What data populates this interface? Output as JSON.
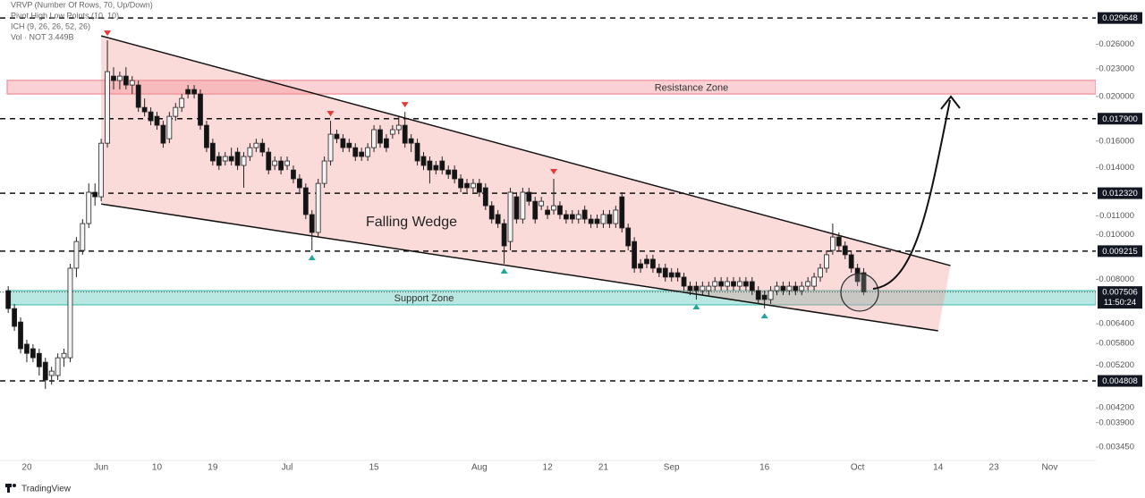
{
  "chart_data": {
    "type": "candlestick",
    "indicators": [
      "VRVP (Number Of Rows, 70, Up/Down)",
      "Pivot High Low Points (10, 10)",
      "ICH (9, 26, 26, 52, 26)",
      "Vol · NOT"
    ],
    "volume_label": "3.449B",
    "annotation": "Falling Wedge",
    "watermark": "TradingView",
    "log": true,
    "ylim": [
      0.003227,
      0.03245
    ],
    "yticks": [
      {
        "value": 0.026,
        "label": "0.026000"
      },
      {
        "value": 0.023,
        "label": "0.023000"
      },
      {
        "value": 0.02,
        "label": "0.020000"
      },
      {
        "value": 0.016,
        "label": "0.016000"
      },
      {
        "value": 0.014,
        "label": "0.014000"
      },
      {
        "value": 0.011,
        "label": "0.011000"
      },
      {
        "value": 0.01,
        "label": "0.010000"
      },
      {
        "value": 0.008,
        "label": "0.008000"
      },
      {
        "value": 0.0064,
        "label": "0.006400"
      },
      {
        "value": 0.0058,
        "label": "0.005800"
      },
      {
        "value": 0.0052,
        "label": "0.005200"
      },
      {
        "value": 0.0042,
        "label": "0.004200"
      },
      {
        "value": 0.0039,
        "label": "0.003900"
      },
      {
        "value": 0.00345,
        "label": "0.003450"
      }
    ],
    "levels": [
      0.029648,
      {
        "value": 0.0179,
        "label": "0.017900"
      },
      {
        "value": 0.01232,
        "label": "0.012320"
      },
      0.009215,
      0.004808
    ],
    "last_price": 0.007506,
    "countdown": "11:50:24",
    "up_color": "#f4f4f4",
    "down_color": "#131313",
    "zones": [
      {
        "label": "Resistance Zone",
        "range": [
          0.02026,
          0.02169
        ],
        "color": "#f28b96"
      },
      {
        "label": "Support Zone",
        "range": [
          0.00704,
          0.00756
        ],
        "color": "#4fc3b5"
      }
    ],
    "trendlines": [
      {
        "points": [
          [
            15,
            0.02711
          ],
          [
            152,
            0.00857
          ]
        ]
      },
      {
        "points": [
          [
            15,
            0.01167
          ],
          [
            150,
            0.00618
          ]
        ]
      }
    ],
    "pivot_highs": [
      16,
      52,
      64,
      88
    ],
    "pivot_lows": [
      49,
      80,
      111,
      122
    ],
    "pivot_high_color": "#e53935",
    "pivot_low_color": "#26a69a",
    "categories": [
      null,
      null,
      null,
      "20",
      null,
      null,
      null,
      null,
      null,
      null,
      null,
      null,
      null,
      null,
      null,
      "Jun",
      null,
      null,
      null,
      null,
      null,
      null,
      null,
      null,
      "10",
      null,
      null,
      null,
      null,
      null,
      null,
      null,
      null,
      "19",
      null,
      null,
      null,
      null,
      null,
      null,
      null,
      null,
      null,
      null,
      null,
      "Jul",
      null,
      null,
      null,
      null,
      null,
      null,
      null,
      null,
      null,
      null,
      null,
      null,
      null,
      "15",
      null,
      null,
      null,
      null,
      null,
      null,
      null,
      null,
      null,
      null,
      null,
      null,
      null,
      null,
      null,
      null,
      "Aug",
      null,
      null,
      null,
      null,
      null,
      null,
      null,
      null,
      null,
      null,
      "12",
      null,
      null,
      null,
      null,
      null,
      null,
      null,
      null,
      "21",
      null,
      null,
      null,
      null,
      null,
      null,
      null,
      null,
      null,
      null,
      "Sep",
      null,
      null,
      null,
      null,
      null,
      null,
      null,
      null,
      null,
      null,
      null,
      null,
      null,
      null,
      "16",
      null,
      null,
      null,
      null,
      null,
      null,
      null,
      null,
      null,
      null,
      null,
      null,
      null,
      null,
      "Oct",
      null,
      null,
      null,
      null,
      null,
      null,
      null,
      null,
      null,
      null,
      null,
      null,
      "14",
      null,
      null,
      null,
      null,
      null,
      null,
      null,
      null,
      "23",
      null,
      null,
      null,
      null,
      null,
      null,
      null,
      null,
      "Nov",
      null,
      null,
      null,
      null,
      null,
      null
    ],
    "open": [
      0.00756,
      0.00691,
      0.00646,
      0.00578,
      0.00565,
      0.00552,
      0.00528,
      0.00494,
      0.00494,
      0.0054,
      0.0054,
      0.00846,
      0.00925,
      0.01058,
      0.01238,
      0.0121,
      0.01583,
      0.02216,
      0.02167,
      0.02216,
      0.02119,
      0.02119,
      0.01894,
      0.01852,
      0.01811,
      0.01732,
      0.01619,
      0.01811,
      0.01894,
      0.02072,
      0.02072,
      0.02026,
      0.01732,
      0.01583,
      0.01481,
      0.01448,
      0.01481,
      0.01514,
      0.01416,
      0.01481,
      0.01548,
      0.01583,
      0.01514,
      0.01416,
      0.01448,
      0.01416,
      0.01384,
      0.01324,
      0.01266,
      0.01107,
      0.01012,
      0.01294,
      0.01448,
      0.01656,
      0.01619,
      0.01583,
      0.01548,
      0.01514,
      0.01481,
      0.01548,
      0.01694,
      0.01619,
      0.01656,
      0.01694,
      0.01732,
      0.01619,
      0.01583,
      0.01481,
      0.01448,
      0.01416,
      0.01448,
      0.01384,
      0.01384,
      0.01324,
      0.01294,
      0.01266,
      0.01294,
      0.01266,
      0.01157,
      0.01107,
      0.01058,
      0.00967,
      0.0121,
      0.01082,
      0.01238,
      0.01183,
      0.01157,
      0.01132,
      0.01132,
      0.01157,
      0.01107,
      0.01107,
      0.01082,
      0.01132,
      0.01082,
      0.01082,
      0.01058,
      0.01107,
      0.01058,
      0.0121,
      0.01035,
      0.00967,
      0.00865,
      0.00885,
      0.00885,
      0.00846,
      0.00846,
      0.00827,
      0.00827,
      0.00809,
      0.00773,
      0.00773,
      0.00756,
      0.00756,
      0.00773,
      0.00791,
      0.00773,
      0.00791,
      0.00773,
      0.00791,
      0.00791,
      0.00756,
      0.00739,
      0.00723,
      0.00756,
      0.00773,
      0.00756,
      0.00773,
      0.00756,
      0.00773,
      0.00773,
      0.00809,
      0.00846,
      0.00925,
      0.00989,
      0.00946,
      0.00905,
      0.00846,
      0.00827,
      null,
      null,
      null,
      null,
      null,
      null,
      null,
      null,
      null,
      null,
      null,
      null,
      null,
      null,
      null,
      null,
      null,
      null,
      null,
      null,
      null,
      null,
      null,
      null,
      null,
      null,
      null,
      null,
      null,
      null,
      null,
      null,
      null,
      null,
      null,
      null
    ],
    "high": [
      0.00773,
      0.00707,
      0.00661,
      0.00591,
      0.00578,
      0.00565,
      0.0054,
      0.00516,
      0.00552,
      0.00565,
      0.00865,
      0.00989,
      0.01082,
      0.01294,
      0.01294,
      0.01619,
      0.02651,
      0.02317,
      0.02266,
      0.02317,
      0.02216,
      0.02167,
      0.01981,
      0.01894,
      0.01852,
      0.01771,
      0.01852,
      0.01937,
      0.02026,
      0.02119,
      0.02119,
      0.02072,
      0.01771,
      0.01619,
      0.01514,
      0.01514,
      0.01548,
      0.01548,
      0.01514,
      0.01583,
      0.01619,
      0.01619,
      0.01548,
      0.01481,
      0.01481,
      0.01481,
      0.01416,
      0.01354,
      0.01294,
      0.01132,
      0.01324,
      0.01481,
      0.01771,
      0.01694,
      0.01656,
      0.01619,
      0.01583,
      0.01548,
      0.01583,
      0.01732,
      0.01732,
      0.01656,
      0.01732,
      0.01811,
      0.01852,
      0.01656,
      0.01619,
      0.01514,
      0.01481,
      0.01448,
      0.01481,
      0.01416,
      0.01416,
      0.01354,
      0.01324,
      0.01324,
      0.01324,
      0.01294,
      0.01183,
      0.01132,
      0.01082,
      0.01266,
      0.01238,
      0.01266,
      0.01266,
      0.0121,
      0.0121,
      0.01157,
      0.01324,
      0.01183,
      0.01132,
      0.01132,
      0.01132,
      0.01157,
      0.01107,
      0.01107,
      0.01132,
      0.01132,
      0.01157,
      0.01238,
      0.01058,
      0.00989,
      0.00885,
      0.00905,
      0.00905,
      0.00865,
      0.00865,
      0.00846,
      0.00846,
      0.00827,
      0.00791,
      0.00791,
      0.00791,
      0.00791,
      0.00809,
      0.00809,
      0.00809,
      0.00809,
      0.00809,
      0.00809,
      0.00809,
      0.00773,
      0.00756,
      0.00773,
      0.00791,
      0.00791,
      0.00791,
      0.00791,
      0.00791,
      0.00809,
      0.00827,
      0.00865,
      0.00925,
      0.01058,
      0.01012,
      0.00967,
      0.00925,
      0.00865,
      0.00846,
      null,
      null,
      null,
      null,
      null,
      null,
      null,
      null,
      null,
      null,
      null,
      null,
      null,
      null,
      null,
      null,
      null,
      null,
      null,
      null,
      null,
      null,
      null,
      null,
      null,
      null,
      null,
      null,
      null,
      null,
      null,
      null,
      null,
      null,
      null,
      null
    ],
    "low": [
      0.00676,
      0.00618,
      0.00552,
      0.00528,
      0.00528,
      0.00494,
      0.00462,
      0.00472,
      0.00483,
      0.00516,
      0.00528,
      0.00809,
      0.00905,
      0.01035,
      0.01157,
      0.01183,
      0.01548,
      0.02072,
      0.02072,
      0.02072,
      0.02026,
      0.01852,
      0.01811,
      0.01732,
      0.01694,
      0.01548,
      0.01583,
      0.01771,
      0.01852,
      0.01981,
      0.01981,
      0.01694,
      0.01514,
      0.01416,
      0.01384,
      0.01416,
      0.01416,
      0.01384,
      0.01266,
      0.01448,
      0.01514,
      0.01481,
      0.01354,
      0.01384,
      0.01354,
      0.01384,
      0.01294,
      0.01238,
      0.01082,
      0.00925,
      0.00989,
      0.01266,
      0.01416,
      0.01583,
      0.01514,
      0.01514,
      0.01448,
      0.01448,
      0.01448,
      0.01514,
      0.01548,
      0.01514,
      0.01619,
      0.01656,
      0.01548,
      0.01514,
      0.01416,
      0.01384,
      0.01294,
      0.01354,
      0.01354,
      0.01324,
      0.01294,
      0.01238,
      0.01238,
      0.01238,
      0.0121,
      0.01132,
      0.01058,
      0.01035,
      0.00865,
      0.00925,
      0.01058,
      0.01058,
      0.01157,
      0.01058,
      0.01132,
      0.01082,
      0.01107,
      0.01082,
      0.01058,
      0.01058,
      0.01058,
      0.01058,
      0.01035,
      0.01035,
      0.01035,
      0.01035,
      0.01035,
      0.01012,
      0.00925,
      0.00827,
      0.00827,
      0.00846,
      0.00827,
      0.00809,
      0.00791,
      0.00791,
      0.00791,
      0.00756,
      0.00739,
      0.00723,
      0.00739,
      0.00739,
      0.00756,
      0.00756,
      0.00756,
      0.00756,
      0.00756,
      0.00756,
      0.00739,
      0.00707,
      0.00691,
      0.00707,
      0.00739,
      0.00739,
      0.00739,
      0.00739,
      0.00739,
      0.00756,
      0.00756,
      0.00791,
      0.00827,
      0.00905,
      0.00925,
      0.00885,
      0.00827,
      0.00773,
      0.00739,
      null,
      null,
      null,
      null,
      null,
      null,
      null,
      null,
      null,
      null,
      null,
      null,
      null,
      null,
      null,
      null,
      null,
      null,
      null,
      null,
      null,
      null,
      null,
      null,
      null,
      null,
      null,
      null,
      null,
      null,
      null,
      null,
      null,
      null,
      null,
      null
    ],
    "close": [
      0.00691,
      0.00632,
      0.00565,
      0.00552,
      0.0054,
      0.00516,
      0.00483,
      0.00505,
      0.0054,
      0.00552,
      0.00846,
      0.00967,
      0.01058,
      0.01238,
      0.0121,
      0.01583,
      0.02266,
      0.02167,
      0.02216,
      0.02119,
      0.02167,
      0.01894,
      0.01852,
      0.01771,
      0.01732,
      0.01583,
      0.01811,
      0.01894,
      0.01981,
      0.02026,
      0.02026,
      0.01732,
      0.01548,
      0.01448,
      0.01416,
      0.01481,
      0.01448,
      0.01416,
      0.01481,
      0.01548,
      0.01583,
      0.01514,
      0.01384,
      0.01448,
      0.01384,
      0.01448,
      0.01324,
      0.01266,
      0.01107,
      0.01012,
      0.01294,
      0.01448,
      0.01656,
      0.01619,
      0.01548,
      0.01548,
      0.01481,
      0.01481,
      0.01548,
      0.01694,
      0.01583,
      0.01548,
      0.01694,
      0.01732,
      0.01583,
      0.01583,
      0.01448,
      0.01416,
      0.01384,
      0.01384,
      0.01384,
      0.01354,
      0.01324,
      0.01266,
      0.01266,
      0.01294,
      0.01238,
      0.01157,
      0.01082,
      0.01058,
      0.00946,
      0.01238,
      0.01082,
      0.01238,
      0.01183,
      0.01082,
      0.01183,
      0.01107,
      0.01157,
      0.01107,
      0.01082,
      0.01082,
      0.01107,
      0.01082,
      0.01058,
      0.01058,
      0.01107,
      0.01058,
      0.01132,
      0.01035,
      0.00946,
      0.00846,
      0.00846,
      0.00865,
      0.00846,
      0.00827,
      0.00809,
      0.00809,
      0.00809,
      0.00773,
      0.00756,
      0.00756,
      0.00773,
      0.00773,
      0.00791,
      0.00773,
      0.00791,
      0.00773,
      0.00791,
      0.00773,
      0.00756,
      0.00723,
      0.00723,
      0.00756,
      0.00773,
      0.00756,
      0.00773,
      0.00756,
      0.00773,
      0.00791,
      0.00809,
      0.00846,
      0.00905,
      0.00989,
      0.00946,
      0.00905,
      0.00846,
      0.00791,
      0.007506,
      null,
      null,
      null,
      null,
      null,
      null,
      null,
      null,
      null,
      null,
      null,
      null,
      null,
      null,
      null,
      null,
      null,
      null,
      null,
      null,
      null,
      null,
      null,
      null,
      null,
      null,
      null,
      null,
      null,
      null,
      null,
      null,
      null,
      null,
      null,
      null
    ]
  }
}
